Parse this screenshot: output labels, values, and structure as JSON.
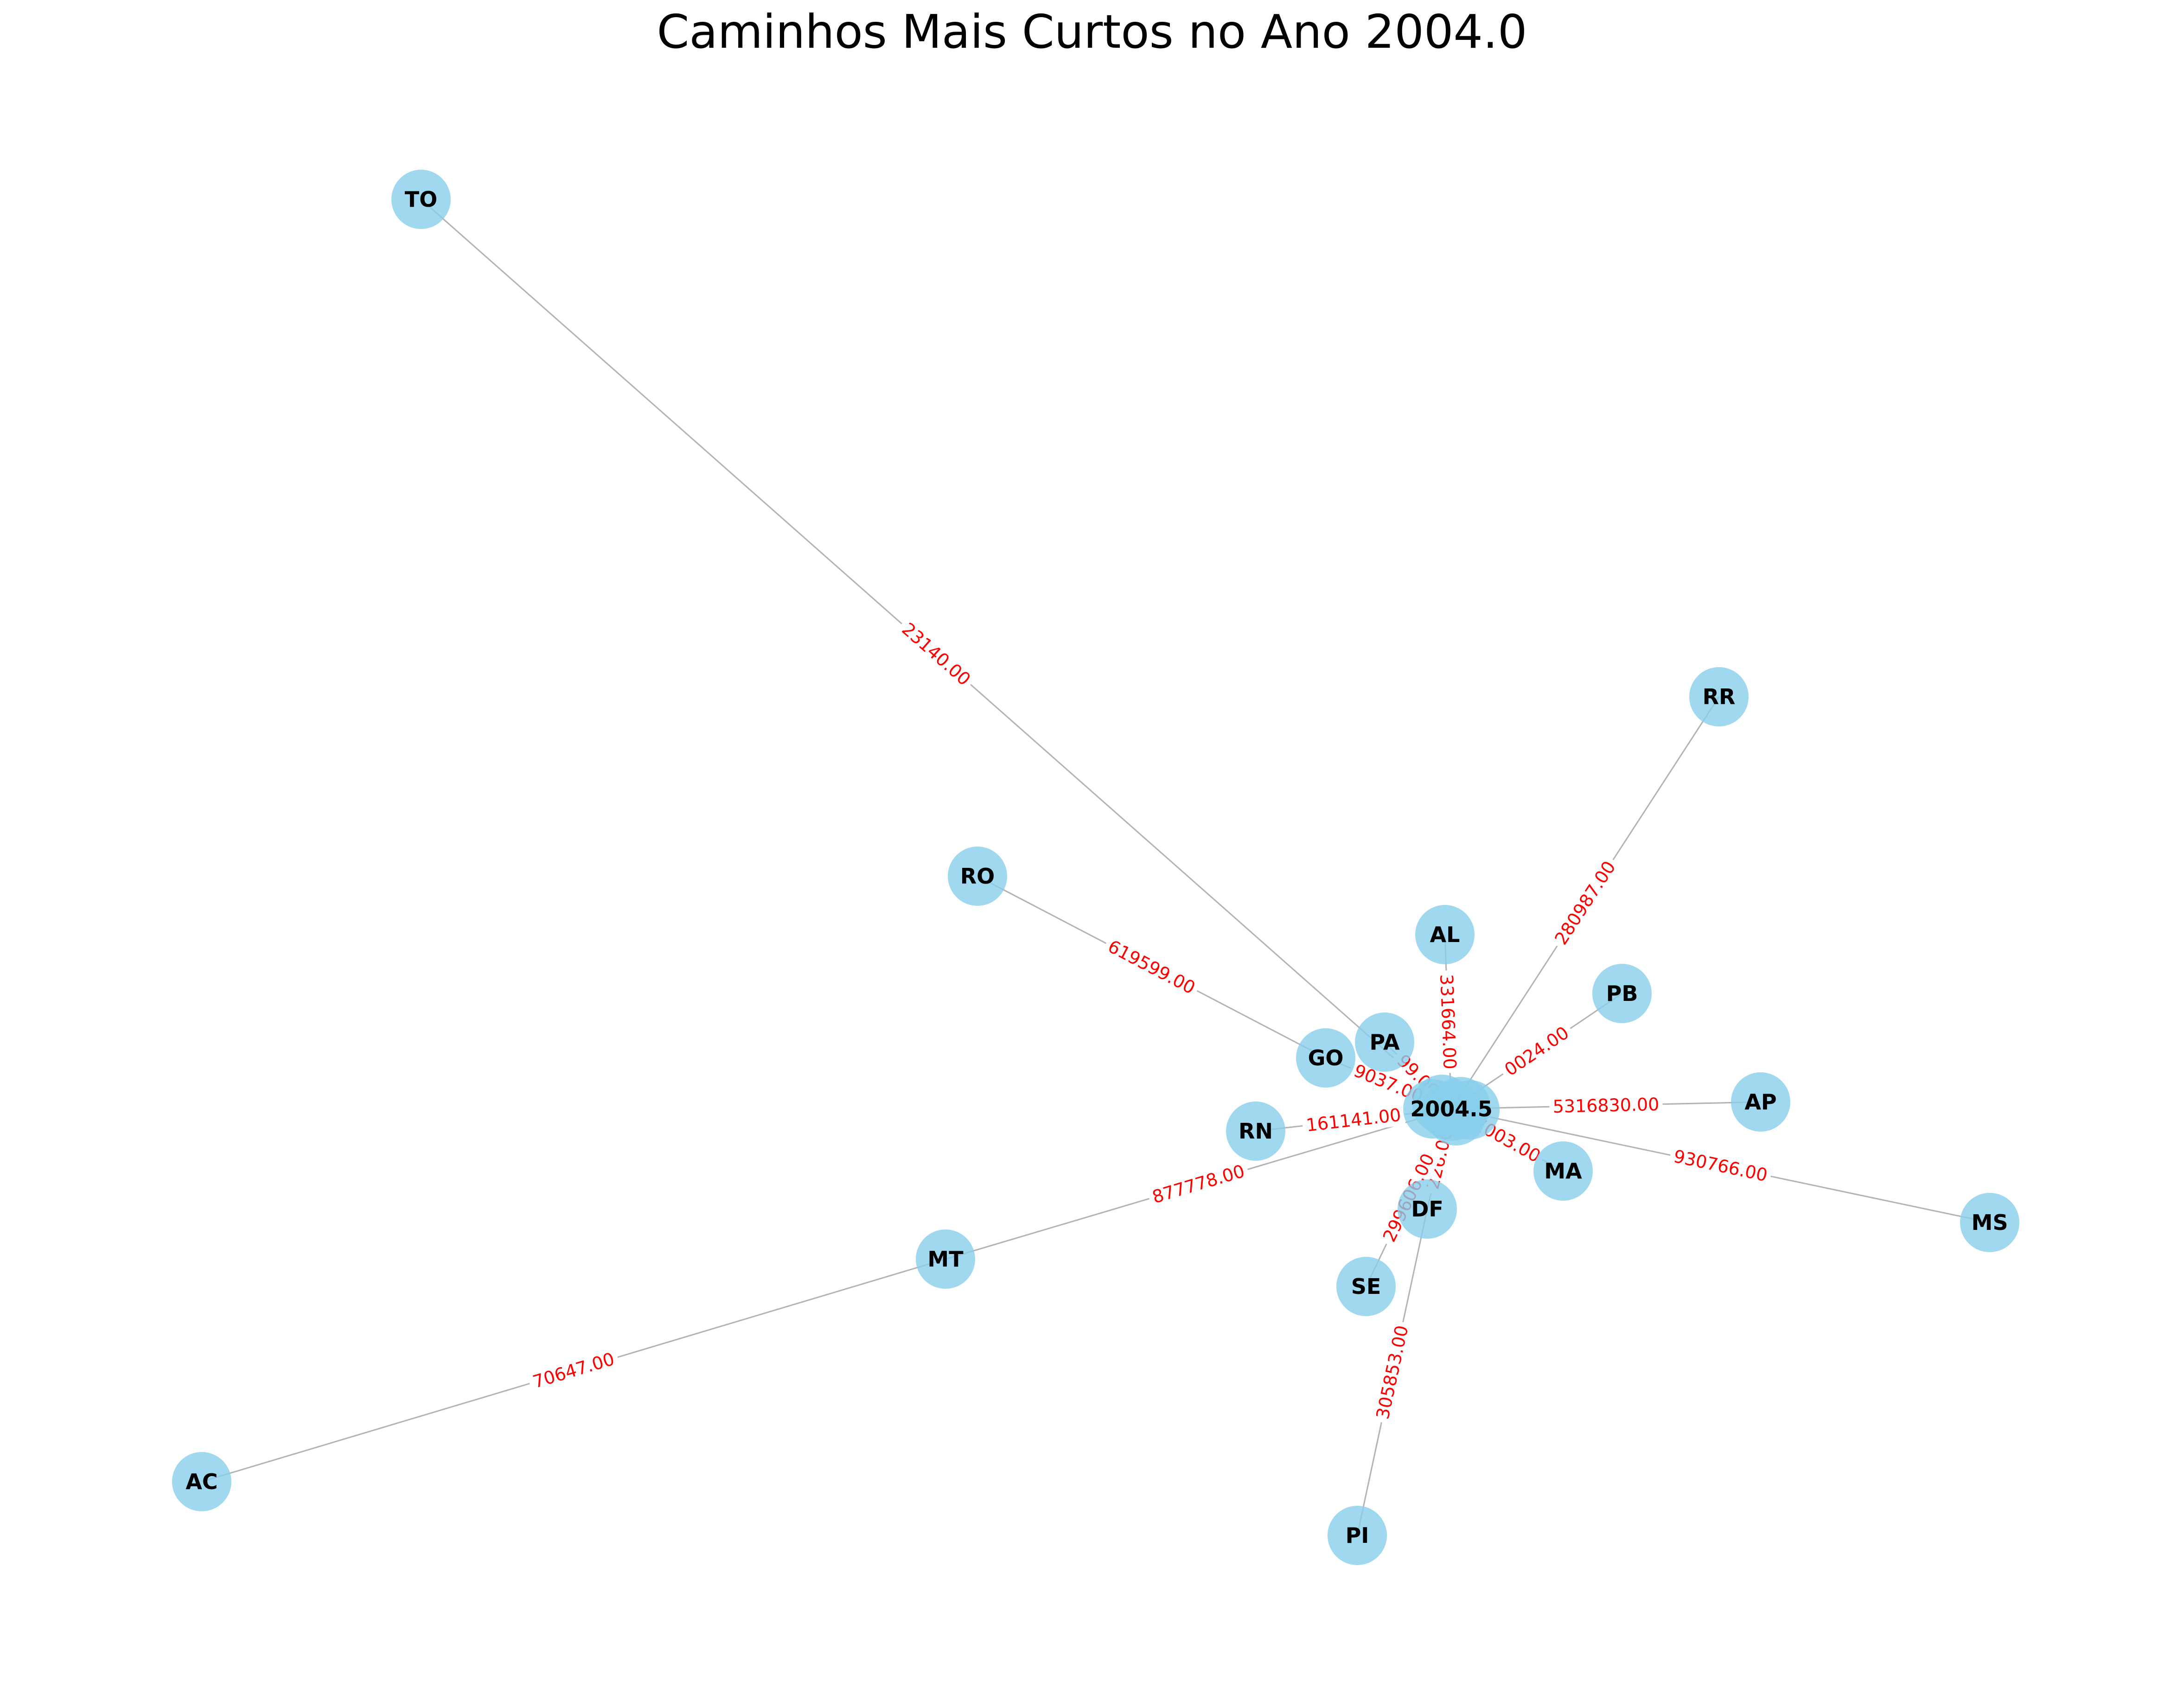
{
  "title": "Caminhos Mais Curtos no Ano 2004.0",
  "colors": {
    "node": "#87ceeb",
    "edge": "#b3b3b3",
    "edge_label": "#ff0000",
    "node_label": "#000000"
  },
  "hub_label": "2004.5",
  "nodes": [
    "TO",
    "RR",
    "RO",
    "AL",
    "PB",
    "PA",
    "GO",
    "AP",
    "RN",
    "MA",
    "MS",
    "DF",
    "MT",
    "SE",
    "AC",
    "PI"
  ],
  "edges": [
    {
      "source": "TO",
      "target": "hub",
      "label": "23140.00"
    },
    {
      "source": "RR",
      "target": "hub",
      "label": "280987.00"
    },
    {
      "source": "RO",
      "target": "GO",
      "label": "619599.00"
    },
    {
      "source": "AL",
      "target": "hub",
      "label": "331664.00"
    },
    {
      "source": "PB",
      "target": "hub",
      "label": "0024.00"
    },
    {
      "source": "PA",
      "target": "hub",
      "label": "99.00"
    },
    {
      "source": "GO",
      "target": "hub",
      "label": "9037.00"
    },
    {
      "source": "AP",
      "target": "hub",
      "label": "5316830.00"
    },
    {
      "source": "RN",
      "target": "hub",
      "label": "161141.00"
    },
    {
      "source": "MA",
      "target": "hub",
      "label": "7003.00"
    },
    {
      "source": "MS",
      "target": "hub",
      "label": "930766.00"
    },
    {
      "source": "DF",
      "target": "hub",
      "label": "226.00"
    },
    {
      "source": "MT",
      "target": "hub",
      "label": "877778.00"
    },
    {
      "source": "SE",
      "target": "hub",
      "label": "299606.00"
    },
    {
      "source": "AC",
      "target": "MT",
      "label": "70647.00"
    },
    {
      "source": "PI",
      "target": "DF",
      "label": "305853.00"
    }
  ]
}
